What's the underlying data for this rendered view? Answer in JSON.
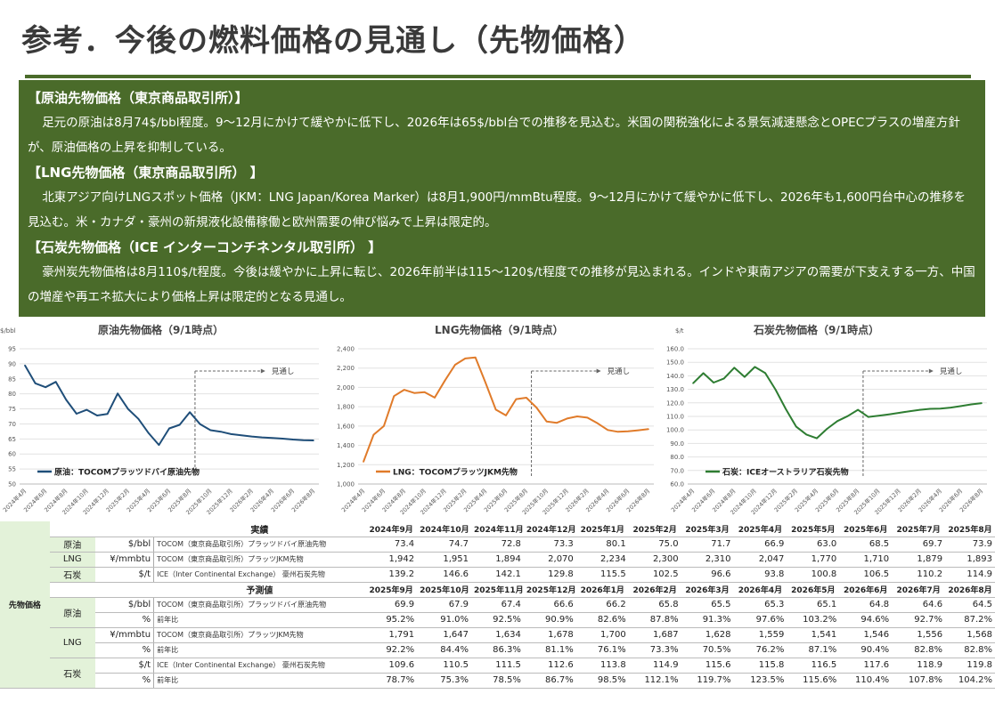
{
  "page": {
    "title": "参考．今後の燃料価格の見通し（先物価格）"
  },
  "summary": {
    "oil_heading": "【原油先物価格（東京商品取引所）】",
    "oil_text": "足元の原油は8月74$/bbl程度。9～12月にかけて緩やかに低下し、2026年は65$/bbl台での推移を見込む。米国の関税強化による景気減速懸念とOPECプラスの増産方針が、原油価格の上昇を抑制している。",
    "lng_heading": "【LNG先物価格（東京商品取引所） 】",
    "lng_text": "北東アジア向けLNGスポット価格（JKM：LNG Japan/Korea Marker）は8月1,900円/mmBtu程度。9～12月にかけて緩やかに低下し、2026年も1,600円台中心の推移を見込む。米・カナダ・豪州の新規液化設備稼働と欧州需要の伸び悩みで上昇は限定的。",
    "coal_heading": "【石炭先物価格（ICE インターコンチネンタル取引所） 】",
    "coal_text": "豪州炭先物価格は8月110$/t程度。今後は緩やかに上昇に転じ、2026年前半は115～120$/t程度での推移が見込まれる。インドや東南アジアの需要が下支えする一方、中国の増産や再エネ拡大により価格上昇は限定的となる見通し。"
  },
  "chart_data": [
    {
      "type": "line",
      "title": "原油先物価格（9/1時点）",
      "yunit": "$/bbl",
      "ylim": [
        50,
        95
      ],
      "yticks": [
        50,
        55,
        60,
        65,
        70,
        75,
        80,
        85,
        90,
        95
      ],
      "x": [
        "2024年4月",
        "2024年5月",
        "2024年6月",
        "2024年7月",
        "2024年8月",
        "2024年9月",
        "2024年10月",
        "2024年11月",
        "2024年12月",
        "2025年1月",
        "2025年2月",
        "2025年3月",
        "2025年4月",
        "2025年5月",
        "2025年6月",
        "2025年7月",
        "2025年8月",
        "2025年9月",
        "2025年10月",
        "2025年11月",
        "2025年12月",
        "2026年1月",
        "2026年2月",
        "2026年3月",
        "2026年4月",
        "2026年5月",
        "2026年6月",
        "2026年7月",
        "2026年8月"
      ],
      "xticks": [
        "2024年4月",
        "2024年6月",
        "2024年8月",
        "2024年10月",
        "2024年12月",
        "2025年2月",
        "2025年4月",
        "2025年6月",
        "2025年8月",
        "2025年10月",
        "2025年12月",
        "2026年2月",
        "2026年4月",
        "2026年6月",
        "2026年8月"
      ],
      "values": [
        89.5,
        83.5,
        82.2,
        84.0,
        78.0,
        73.4,
        74.7,
        72.8,
        73.3,
        80.1,
        75.0,
        71.7,
        66.9,
        63.0,
        68.5,
        69.7,
        73.9,
        69.9,
        67.9,
        67.4,
        66.6,
        66.2,
        65.8,
        65.5,
        65.3,
        65.1,
        64.8,
        64.6,
        64.5
      ],
      "color": "#1f4e79",
      "legend": "原油：TOCOMプラッツドバイ原油先物",
      "forecast_label": "見通し",
      "forecast_start": "2025年9月"
    },
    {
      "type": "line",
      "title": "LNG先物価格（9/1時点）",
      "yunit": "",
      "ylim": [
        1000,
        2400
      ],
      "yticks": [
        1000,
        1200,
        1400,
        1600,
        1800,
        2000,
        2200,
        2400
      ],
      "x": [
        "2024年4月",
        "2024年5月",
        "2024年6月",
        "2024年7月",
        "2024年8月",
        "2024年9月",
        "2024年10月",
        "2024年11月",
        "2024年12月",
        "2025年1月",
        "2025年2月",
        "2025年3月",
        "2025年4月",
        "2025年5月",
        "2025年6月",
        "2025年7月",
        "2025年8月",
        "2025年9月",
        "2025年10月",
        "2025年11月",
        "2025年12月",
        "2026年1月",
        "2026年2月",
        "2026年3月",
        "2026年4月",
        "2026年5月",
        "2026年6月",
        "2026年7月",
        "2026年8月"
      ],
      "xticks": [
        "2024年4月",
        "2024年6月",
        "2024年8月",
        "2024年10月",
        "2024年12月",
        "2025年2月",
        "2025年4月",
        "2025年6月",
        "2025年8月",
        "2025年10月",
        "2025年12月",
        "2026年2月",
        "2026年4月",
        "2026年6月",
        "2026年8月"
      ],
      "values": [
        1230,
        1510,
        1600,
        1910,
        1975,
        1942,
        1951,
        1894,
        2070,
        2234,
        2300,
        2310,
        2047,
        1770,
        1710,
        1879,
        1893,
        1791,
        1647,
        1634,
        1678,
        1700,
        1687,
        1628,
        1559,
        1541,
        1546,
        1556,
        1568
      ],
      "color": "#e07b2a",
      "legend": "LNG：TOCOMプラッツJKM先物",
      "forecast_label": "見通し",
      "forecast_start": "2025年9月"
    },
    {
      "type": "line",
      "title": "石炭先物価格（9/1時点）",
      "yunit": "$/t",
      "ylim": [
        60,
        160
      ],
      "yticks": [
        60,
        70,
        80,
        90,
        100,
        110,
        120,
        130,
        140,
        150,
        160
      ],
      "x": [
        "2024年4月",
        "2024年5月",
        "2024年6月",
        "2024年7月",
        "2024年8月",
        "2024年9月",
        "2024年10月",
        "2024年11月",
        "2024年12月",
        "2025年1月",
        "2025年2月",
        "2025年3月",
        "2025年4月",
        "2025年5月",
        "2025年6月",
        "2025年7月",
        "2025年8月",
        "2025年9月",
        "2025年10月",
        "2025年11月",
        "2025年12月",
        "2026年1月",
        "2026年2月",
        "2026年3月",
        "2026年4月",
        "2026年5月",
        "2026年6月",
        "2026年7月",
        "2026年8月"
      ],
      "xticks": [
        "2024年4月",
        "2024年6月",
        "2024年8月",
        "2024年10月",
        "2024年12月",
        "2025年2月",
        "2025年4月",
        "2025年6月",
        "2025年8月",
        "2025年10月",
        "2025年12月",
        "2026年2月",
        "2026年4月",
        "2026年6月",
        "2026年8月"
      ],
      "values": [
        134.5,
        142.0,
        135.0,
        138.0,
        146.0,
        139.2,
        146.6,
        142.1,
        129.8,
        115.5,
        102.5,
        96.6,
        93.8,
        100.8,
        106.5,
        110.2,
        114.9,
        109.6,
        110.5,
        111.5,
        112.6,
        113.8,
        114.9,
        115.6,
        115.8,
        116.5,
        117.6,
        118.9,
        119.8
      ],
      "color": "#2e7d32",
      "legend": "石炭：ICEオーストラリア石炭先物",
      "forecast_label": "見通し",
      "forecast_start": "2025年9月"
    }
  ],
  "table": {
    "group_label": "先物価格",
    "actual_label": "実績",
    "forecast_label": "予測値",
    "actual_months": [
      "2024年9月",
      "2024年10月",
      "2024年11月",
      "2024年12月",
      "2025年1月",
      "2025年2月",
      "2025年3月",
      "2025年4月",
      "2025年5月",
      "2025年6月",
      "2025年7月",
      "2025年8月"
    ],
    "forecast_months": [
      "2025年9月",
      "2025年10月",
      "2025年11月",
      "2025年12月",
      "2026年1月",
      "2026年2月",
      "2026年3月",
      "2026年4月",
      "2026年5月",
      "2026年6月",
      "2026年7月",
      "2026年8月"
    ],
    "actual_rows": [
      {
        "commodity": "原油",
        "unit": "$/bbl",
        "source": "TOCOM（東京商品取引所）プラッツドバイ原油先物",
        "values": [
          "73.4",
          "74.7",
          "72.8",
          "73.3",
          "80.1",
          "75.0",
          "71.7",
          "66.9",
          "63.0",
          "68.5",
          "69.7",
          "73.9"
        ]
      },
      {
        "commodity": "LNG",
        "unit": "¥/mmbtu",
        "source": "TOCOM（東京商品取引所）プラッツJKM先物",
        "values": [
          "1,942",
          "1,951",
          "1,894",
          "2,070",
          "2,234",
          "2,300",
          "2,310",
          "2,047",
          "1,770",
          "1,710",
          "1,879",
          "1,893"
        ]
      },
      {
        "commodity": "石炭",
        "unit": "$/t",
        "source": "ICE（Inter Continental Exchange） 豪州石炭先物",
        "values": [
          "139.2",
          "146.6",
          "142.1",
          "129.8",
          "115.5",
          "102.5",
          "96.6",
          "93.8",
          "100.8",
          "106.5",
          "110.2",
          "114.9"
        ]
      }
    ],
    "forecast_rows": [
      {
        "commodity": "原油",
        "unit": "$/bbl",
        "unit_pct": "%",
        "source": "TOCOM（東京商品取引所）プラッツドバイ原油先物",
        "yoy_label": "前年比",
        "values": [
          "69.9",
          "67.9",
          "67.4",
          "66.6",
          "66.2",
          "65.8",
          "65.5",
          "65.3",
          "65.1",
          "64.8",
          "64.6",
          "64.5"
        ],
        "yoy": [
          "95.2%",
          "91.0%",
          "92.5%",
          "90.9%",
          "82.6%",
          "87.8%",
          "91.3%",
          "97.6%",
          "103.2%",
          "94.6%",
          "92.7%",
          "87.2%"
        ]
      },
      {
        "commodity": "LNG",
        "unit": "¥/mmbtu",
        "unit_pct": "%",
        "source": "TOCOM（東京商品取引所）プラッツJKM先物",
        "yoy_label": "前年比",
        "values": [
          "1,791",
          "1,647",
          "1,634",
          "1,678",
          "1,700",
          "1,687",
          "1,628",
          "1,559",
          "1,541",
          "1,546",
          "1,556",
          "1,568"
        ],
        "yoy": [
          "92.2%",
          "84.4%",
          "86.3%",
          "81.1%",
          "76.1%",
          "73.3%",
          "70.5%",
          "76.2%",
          "87.1%",
          "90.4%",
          "82.8%",
          "82.8%"
        ]
      },
      {
        "commodity": "石炭",
        "unit": "$/t",
        "unit_pct": "%",
        "source": "ICE（Inter Continental Exchange） 豪州石炭先物",
        "yoy_label": "前年比",
        "values": [
          "109.6",
          "110.5",
          "111.5",
          "112.6",
          "113.8",
          "114.9",
          "115.6",
          "115.8",
          "116.5",
          "117.6",
          "118.9",
          "119.8"
        ],
        "yoy": [
          "78.7%",
          "75.3%",
          "78.5%",
          "86.7%",
          "98.5%",
          "112.1%",
          "119.7%",
          "123.5%",
          "115.6%",
          "110.4%",
          "107.8%",
          "104.2%"
        ]
      }
    ]
  }
}
